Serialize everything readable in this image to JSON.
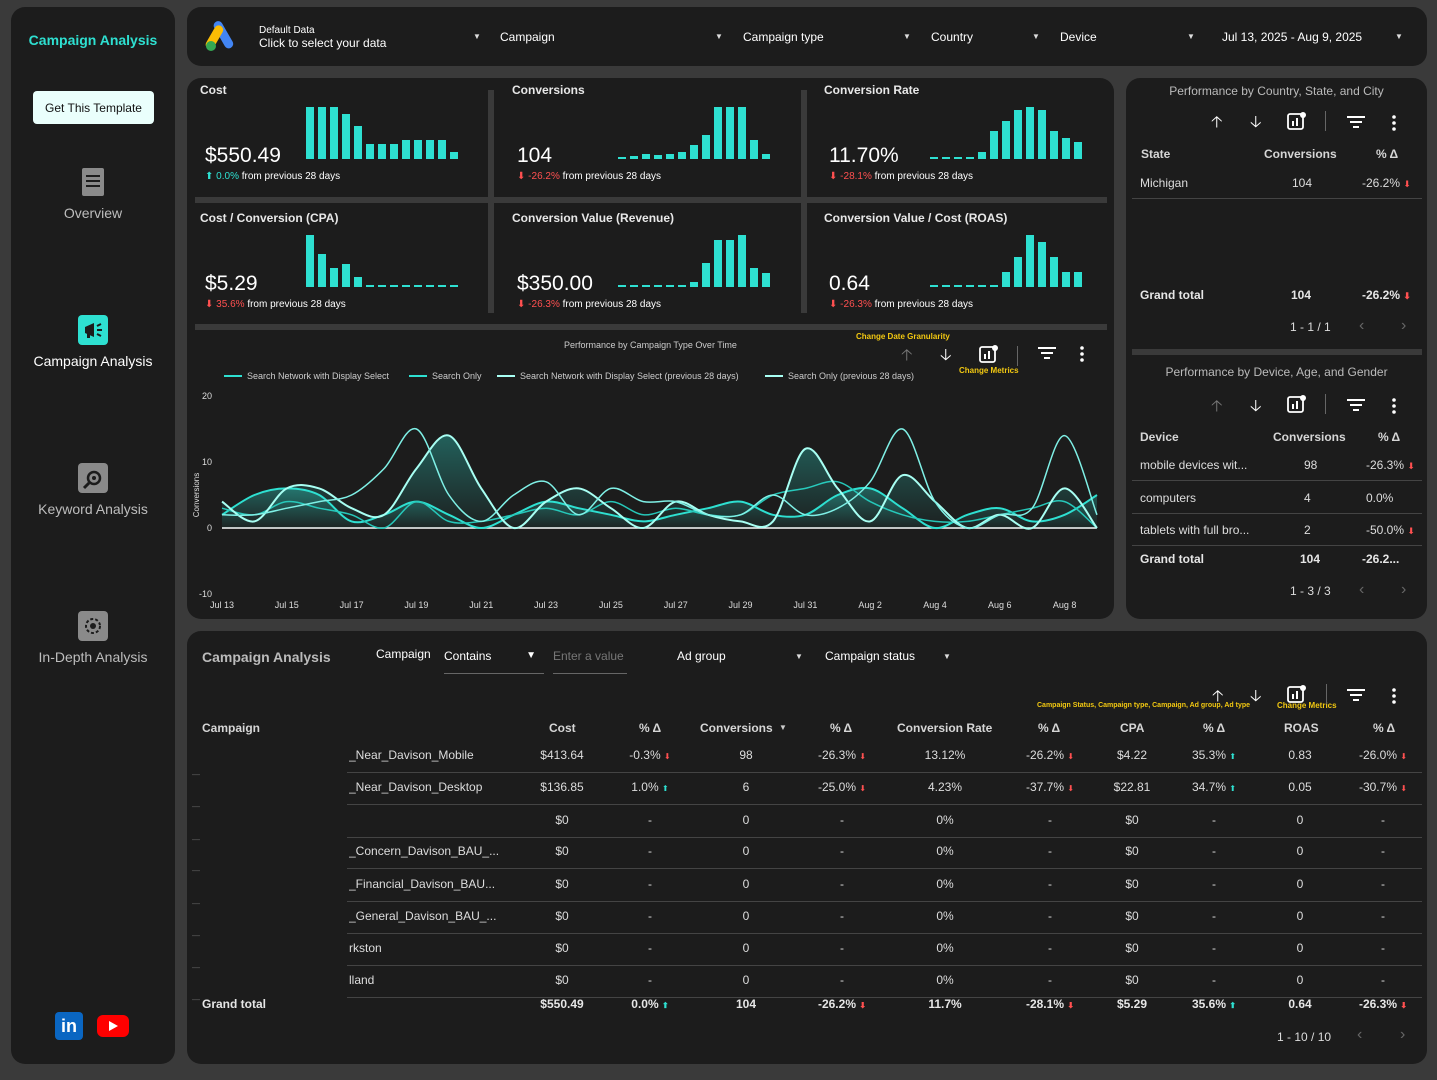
{
  "colors": {
    "accent": "#2ee0d1",
    "bg": "#3a3a3a",
    "panel": "#1c1c1c",
    "up": "#2ee0d1",
    "down": "#ff5050",
    "anno": "#f2c811"
  },
  "sidebar": {
    "title": "Campaign Analysis",
    "template_button": "Get This Template",
    "nav": [
      {
        "label": "Overview",
        "icon": "document-icon"
      },
      {
        "label": "Campaign Analysis",
        "icon": "megaphone-icon"
      },
      {
        "label": "Keyword Analysis",
        "icon": "magnifier-icon"
      },
      {
        "label": "In-Depth Analysis",
        "icon": "gear-chart-icon"
      }
    ],
    "social": [
      "linkedin-icon",
      "youtube-icon"
    ]
  },
  "header": {
    "data_source_title": "Default Data",
    "data_source_sub": "Click to select your data",
    "filters": [
      "Campaign",
      "Campaign type",
      "Country",
      "Device"
    ],
    "date_range": "Jul 13, 2025 - Aug 9, 2025"
  },
  "kpis": [
    {
      "title": "Cost",
      "value": "$550.49",
      "dir": "up",
      "change": "0.0%",
      "suffix": "from previous 28 days",
      "bars": [
        14,
        14,
        14,
        12,
        9,
        4,
        4,
        4,
        5,
        5,
        5,
        5,
        2
      ]
    },
    {
      "title": "Conversions",
      "value": "104",
      "dir": "down",
      "change": "-26.2%",
      "suffix": "from previous 28 days",
      "bars": [
        0.3,
        0.6,
        1,
        0.8,
        1,
        1.5,
        3,
        5,
        11,
        11,
        11,
        4,
        1
      ]
    },
    {
      "title": "Conversion Rate",
      "value": "11.70%",
      "dir": "down",
      "change": "-28.1%",
      "suffix": "from previous 28 days",
      "bars": [
        0.2,
        0.2,
        0.3,
        0.3,
        1,
        4,
        5.5,
        7,
        7.5,
        7,
        4,
        3,
        2.5
      ]
    },
    {
      "title": "Cost / Conversion (CPA)",
      "value": "$5.29",
      "dir": "down",
      "change": "35.6%",
      "suffix": "from previous 28 days",
      "bars": [
        25,
        16,
        9,
        11,
        5,
        1,
        0.5,
        0.5,
        0.5,
        0.5,
        0.5,
        0.5,
        0.5
      ]
    },
    {
      "title": "Conversion Value (Revenue)",
      "value": "$350.00",
      "dir": "down",
      "change": "-26.3%",
      "suffix": "from previous 28 days",
      "bars": [
        0.2,
        0.2,
        0.2,
        0.2,
        0.3,
        0.5,
        1,
        5,
        10,
        10,
        11,
        4,
        3
      ]
    },
    {
      "title": "Conversion Value / Cost (ROAS)",
      "value": "0.64",
      "dir": "down",
      "change": "-26.3%",
      "suffix": "from previous 28 days",
      "bars": [
        0,
        0,
        0,
        0,
        0,
        0,
        2,
        4,
        7,
        6,
        4,
        2,
        2
      ]
    }
  ],
  "geo_table": {
    "title": "Performance by Country, State, and City",
    "headers": [
      "State",
      "Conversions",
      "% Δ"
    ],
    "rows": [
      {
        "name": "Michigan",
        "conv": "104",
        "pct": "-26.2%",
        "dir": "down"
      }
    ],
    "total": {
      "name": "Grand total",
      "conv": "104",
      "pct": "-26.2%",
      "dir": "down"
    },
    "pager": "1 - 1 / 1"
  },
  "device_table": {
    "title": "Performance by Device, Age, and Gender",
    "headers": [
      "Device",
      "Conversions",
      "% Δ"
    ],
    "rows": [
      {
        "name": "mobile devices wit...",
        "conv": "98",
        "pct": "-26.3%",
        "dir": "down"
      },
      {
        "name": "computers",
        "conv": "4",
        "pct": "0.0%",
        "dir": ""
      },
      {
        "name": "tablets with full bro...",
        "conv": "2",
        "pct": "-50.0%",
        "dir": "down"
      }
    ],
    "total": {
      "name": "Grand total",
      "conv": "104",
      "pct": "-26.2..."
    },
    "pager": "1 - 3 / 3"
  },
  "chart_data": {
    "type": "line",
    "title": "Performance by Campaign Type Over Time",
    "ylabel": "Conversions",
    "xlabel": "",
    "ylim": [
      -10,
      20
    ],
    "yticks": [
      20,
      10,
      0,
      -10
    ],
    "x_tick_labels": [
      "Jul 13",
      "Jul 15",
      "Jul 17",
      "Jul 19",
      "Jul 21",
      "Jul 23",
      "Jul 25",
      "Jul 27",
      "Jul 29",
      "Jul 31",
      "Aug 2",
      "Aug 4",
      "Aug 6",
      "Aug 8"
    ],
    "series": [
      {
        "name": "Search Network with Display Select",
        "values": [
          2,
          5,
          6,
          5,
          1,
          2,
          4,
          2,
          0,
          2,
          4,
          3,
          2,
          1,
          2,
          3,
          4,
          2,
          2,
          5,
          6,
          3,
          0,
          2,
          3,
          1,
          2,
          5
        ]
      },
      {
        "name": "Search Only",
        "values": [
          3,
          2,
          4,
          3,
          2,
          0,
          4,
          1,
          1,
          2,
          3,
          2,
          4,
          2,
          3,
          2,
          2,
          5,
          6,
          7,
          4,
          2,
          1,
          1,
          2,
          3,
          4,
          0
        ]
      },
      {
        "name": "Search Network with Display Select (previous 28 days)",
        "values": [
          4,
          1,
          6,
          6,
          3,
          2,
          9,
          14,
          6,
          0,
          4,
          6,
          3,
          0,
          4,
          2,
          1,
          1,
          12,
          6,
          1,
          8,
          4,
          0,
          2,
          0,
          6,
          0
        ]
      },
      {
        "name": "Search Only (previous 28 days)",
        "values": [
          2,
          2,
          3,
          4,
          5,
          9,
          15,
          5,
          1,
          5,
          7,
          2,
          6,
          4,
          4,
          2,
          2,
          5,
          2,
          3,
          7,
          15,
          4,
          0,
          2,
          3,
          14,
          2
        ]
      }
    ],
    "annotations": [
      "Change Date Granularity",
      "Change Metrics"
    ]
  },
  "campaign_table": {
    "title": "Campaign Analysis",
    "filters": {
      "campaign_label": "Campaign",
      "operator": "Contains",
      "placeholder": "Enter a value",
      "ad_group": "Ad group",
      "status": "Campaign status"
    },
    "annotation_left": "Campaign Status, Campaign type, Campaign, Ad group, Ad type",
    "annotation_right": "Change Metrics",
    "headers": [
      "Campaign",
      "Cost",
      "% Δ",
      "Conversions",
      "% Δ",
      "Conversion Rate",
      "% Δ",
      "CPA",
      "% Δ",
      "ROAS",
      "% Δ"
    ],
    "rows": [
      {
        "name": "_Near_Davison_Mobile",
        "cost": "$413.64",
        "c1": "-0.3%",
        "d1": "down",
        "conv": "98",
        "c2": "-26.3%",
        "d2": "down",
        "rate": "13.12%",
        "c3": "-26.2%",
        "d3": "down",
        "cpa": "$4.22",
        "c4": "35.3%",
        "d4": "up",
        "roas": "0.83",
        "c5": "-26.0%",
        "d5": "down"
      },
      {
        "name": "_Near_Davison_Desktop",
        "cost": "$136.85",
        "c1": "1.0%",
        "d1": "up",
        "conv": "6",
        "c2": "-25.0%",
        "d2": "down",
        "rate": "4.23%",
        "c3": "-37.7%",
        "d3": "down",
        "cpa": "$22.81",
        "c4": "34.7%",
        "d4": "up",
        "roas": "0.05",
        "c5": "-30.7%",
        "d5": "down"
      },
      {
        "name": "",
        "cost": "$0",
        "c1": "-",
        "d1": "",
        "conv": "0",
        "c2": "-",
        "d2": "",
        "rate": "0%",
        "c3": "-",
        "d3": "",
        "cpa": "$0",
        "c4": "-",
        "d4": "",
        "roas": "0",
        "c5": "-",
        "d5": ""
      },
      {
        "name": "_Concern_Davison_BAU_...",
        "cost": "$0",
        "c1": "-",
        "d1": "",
        "conv": "0",
        "c2": "-",
        "d2": "",
        "rate": "0%",
        "c3": "-",
        "d3": "",
        "cpa": "$0",
        "c4": "-",
        "d4": "",
        "roas": "0",
        "c5": "-",
        "d5": ""
      },
      {
        "name": "_Financial_Davison_BAU...",
        "cost": "$0",
        "c1": "-",
        "d1": "",
        "conv": "0",
        "c2": "-",
        "d2": "",
        "rate": "0%",
        "c3": "-",
        "d3": "",
        "cpa": "$0",
        "c4": "-",
        "d4": "",
        "roas": "0",
        "c5": "-",
        "d5": ""
      },
      {
        "name": "_General_Davison_BAU_...",
        "cost": "$0",
        "c1": "-",
        "d1": "",
        "conv": "0",
        "c2": "-",
        "d2": "",
        "rate": "0%",
        "c3": "-",
        "d3": "",
        "cpa": "$0",
        "c4": "-",
        "d4": "",
        "roas": "0",
        "c5": "-",
        "d5": ""
      },
      {
        "name": "rkston",
        "cost": "$0",
        "c1": "-",
        "d1": "",
        "conv": "0",
        "c2": "-",
        "d2": "",
        "rate": "0%",
        "c3": "-",
        "d3": "",
        "cpa": "$0",
        "c4": "-",
        "d4": "",
        "roas": "0",
        "c5": "-",
        "d5": ""
      },
      {
        "name": "lland",
        "cost": "$0",
        "c1": "-",
        "d1": "",
        "conv": "0",
        "c2": "-",
        "d2": "",
        "rate": "0%",
        "c3": "-",
        "d3": "",
        "cpa": "$0",
        "c4": "-",
        "d4": "",
        "roas": "0",
        "c5": "-",
        "d5": ""
      }
    ],
    "total": {
      "name": "Grand total",
      "cost": "$550.49",
      "c1": "0.0%",
      "d1": "up",
      "conv": "104",
      "c2": "-26.2%",
      "d2": "down",
      "rate": "11.7%",
      "c3": "-28.1%",
      "d3": "down",
      "cpa": "$5.29",
      "c4": "35.6%",
      "d4": "up",
      "roas": "0.64",
      "c5": "-26.3%",
      "d5": "down"
    },
    "pager": "1 - 10 / 10"
  }
}
